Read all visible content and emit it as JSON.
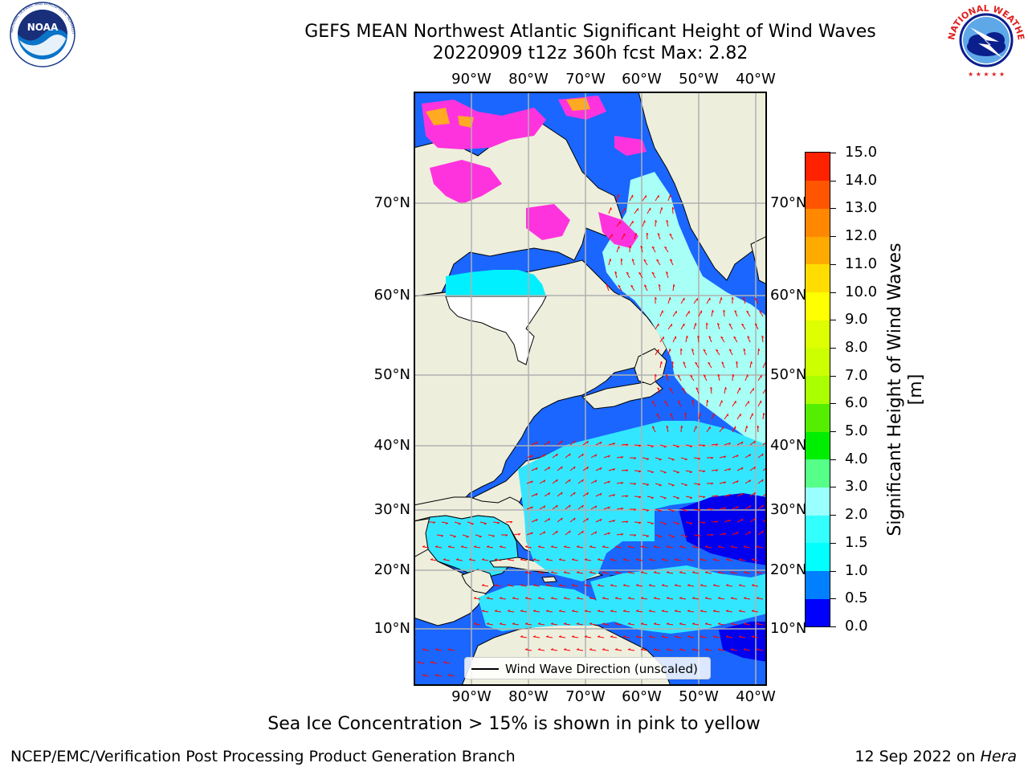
{
  "header": {
    "title_line1": "GEFS MEAN Northwest Atlantic Significant Height of Wind Waves",
    "title_line2": "20220909 t12z 360h fcst   Max: 2.82"
  },
  "logos": {
    "noaa": {
      "text": "NOAA",
      "ring_text": "NATIONAL OCEANIC AND ATMOSPHERIC ADMINISTRATION · U.S. DEPARTMENT OF COMMERCE"
    },
    "nws": {
      "ring_text": "NATIONAL WEATHER SERVICE"
    }
  },
  "map": {
    "lon_ticks": [
      "90°W",
      "80°W",
      "70°W",
      "60°W",
      "50°W",
      "40°W"
    ],
    "lat_ticks": [
      "70°N",
      "60°N",
      "50°N",
      "40°N",
      "30°N",
      "20°N",
      "10°N"
    ],
    "legend": "Wind Wave Direction (unscaled)",
    "colors": {
      "land": "#eeeedd",
      "arrow": "#ff0000",
      "ice": "#ff33dd",
      "grid": "#b0b0b0"
    }
  },
  "colorbar": {
    "title": "Significant Height of Wind Waves [m]",
    "ticks": [
      "0.0",
      "0.5",
      "1.0",
      "1.5",
      "2.0",
      "3.0",
      "4.0",
      "5.0",
      "6.0",
      "7.0",
      "8.0",
      "9.0",
      "10.0",
      "11.0",
      "12.0",
      "13.0",
      "14.0",
      "15.0"
    ],
    "colors": [
      "#0000ff",
      "#0080ff",
      "#00ffff",
      "#33ffff",
      "#99ffff",
      "#55ff88",
      "#00ee00",
      "#55ee00",
      "#aaff00",
      "#ccff00",
      "#ddff00",
      "#ffff00",
      "#ffdd00",
      "#ffaa00",
      "#ff8800",
      "#ff5500",
      "#ff2200"
    ]
  },
  "note": "Sea Ice Concentration > 15% is shown in pink to yellow",
  "footer": {
    "left": "NCEP/EMC/Verification Post Processing Product Generation Branch",
    "date": "12 Sep 2022 on ",
    "machine": "Hera"
  }
}
